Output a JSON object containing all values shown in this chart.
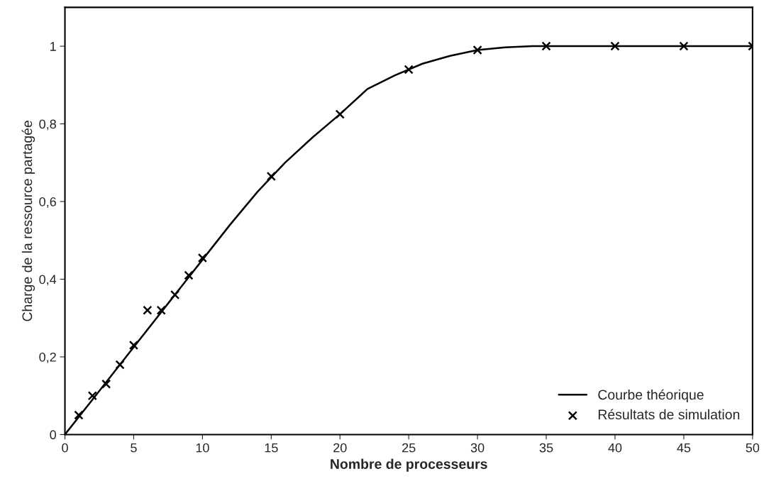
{
  "chart_data": {
    "type": "line",
    "xlabel": "Nombre de processeurs",
    "ylabel": "Charge de la ressource partagée",
    "xlim": [
      0,
      50
    ],
    "ylim": [
      0,
      1.1
    ],
    "xticks": [
      0,
      5,
      10,
      15,
      20,
      25,
      30,
      35,
      40,
      45,
      50
    ],
    "yticks": [
      0,
      {
        "value": 0.2,
        "label": "0,2"
      },
      {
        "value": 0.4,
        "label": "0,4"
      },
      {
        "value": 0.6,
        "label": "0,6"
      },
      {
        "value": 0.8,
        "label": "0,8"
      },
      1
    ],
    "grid": false,
    "legend": "bottom right",
    "series": [
      {
        "name": "Courbe théorique",
        "color": "#000000",
        "marker": "none",
        "line_style": "solid",
        "x": [
          0,
          2,
          5,
          8,
          10,
          12,
          14,
          16,
          18,
          20,
          22,
          24,
          26,
          28,
          30,
          32,
          34,
          50
        ],
        "values": [
          0,
          0.09,
          0.225,
          0.36,
          0.45,
          0.54,
          0.625,
          0.7,
          0.765,
          0.825,
          0.89,
          0.925,
          0.955,
          0.975,
          0.99,
          0.997,
          1.0,
          1.0
        ]
      },
      {
        "name": "Résultats de simulation",
        "type": "scatter",
        "color": "#000000",
        "marker": "cross",
        "x": [
          1,
          2,
          3,
          4,
          5,
          6,
          7,
          8,
          9,
          10,
          15,
          20,
          25,
          30,
          35,
          40,
          45,
          50
        ],
        "values": [
          0.05,
          0.1,
          0.13,
          0.18,
          0.23,
          0.32,
          0.32,
          0.36,
          0.41,
          0.455,
          0.665,
          0.825,
          0.94,
          0.99,
          1.0,
          1.0,
          1.0,
          1.0
        ]
      }
    ]
  }
}
